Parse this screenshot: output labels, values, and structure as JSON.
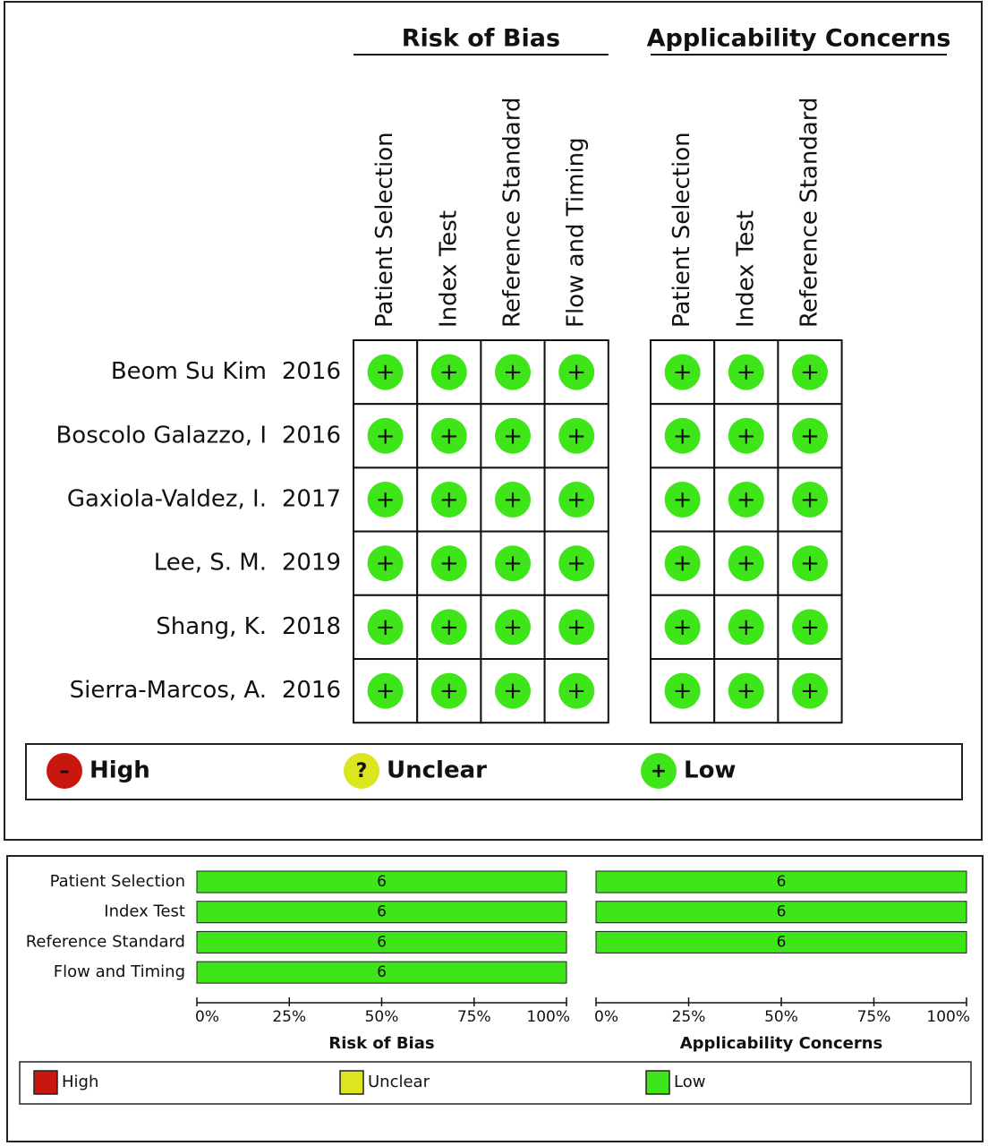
{
  "summary": {
    "groups": [
      {
        "title": "Risk of Bias",
        "domains": [
          "Patient Selection",
          "Index Test",
          "Reference Standard",
          "Flow and Timing"
        ]
      },
      {
        "title": "Applicability Concerns",
        "domains": [
          "Patient Selection",
          "Index Test",
          "Reference Standard"
        ]
      }
    ],
    "studies": [
      {
        "author": "Beom Su Kim",
        "year": "2016",
        "ratings": [
          [
            "+",
            "+",
            "+",
            "+"
          ],
          [
            "+",
            "+",
            "+"
          ]
        ]
      },
      {
        "author": "Boscolo Galazzo, I",
        "year": "2016",
        "ratings": [
          [
            "+",
            "+",
            "+",
            "+"
          ],
          [
            "+",
            "+",
            "+"
          ]
        ]
      },
      {
        "author": "Gaxiola-Valdez, I.",
        "year": "2017",
        "ratings": [
          [
            "+",
            "+",
            "+",
            "+"
          ],
          [
            "+",
            "+",
            "+"
          ]
        ]
      },
      {
        "author": "Lee, S. M.",
        "year": "2019",
        "ratings": [
          [
            "+",
            "+",
            "+",
            "+"
          ],
          [
            "+",
            "+",
            "+"
          ]
        ]
      },
      {
        "author": "Shang, K.",
        "year": "2018",
        "ratings": [
          [
            "+",
            "+",
            "+",
            "+"
          ],
          [
            "+",
            "+",
            "+"
          ]
        ]
      },
      {
        "author": "Sierra-Marcos, A.",
        "year": "2016",
        "ratings": [
          [
            "+",
            "+",
            "+",
            "+"
          ],
          [
            "+",
            "+",
            "+"
          ]
        ]
      }
    ],
    "legend": [
      {
        "symbol": "–",
        "label": "High",
        "color": "#c8170f"
      },
      {
        "symbol": "?",
        "label": "Unclear",
        "color": "#dce61e"
      },
      {
        "symbol": "+",
        "label": "Low",
        "color": "#3ee619"
      }
    ]
  },
  "chart_data": [
    {
      "type": "bar",
      "orientation": "horizontal",
      "stacked": true,
      "xlabel": "Risk of Bias",
      "categories": [
        "Patient Selection",
        "Index Test",
        "Reference Standard",
        "Flow and Timing"
      ],
      "series": [
        {
          "name": "High",
          "color": "#c8170f",
          "values": [
            0,
            0,
            0,
            0
          ]
        },
        {
          "name": "Unclear",
          "color": "#dce61e",
          "values": [
            0,
            0,
            0,
            0
          ]
        },
        {
          "name": "Low",
          "color": "#3ee619",
          "values": [
            100,
            100,
            100,
            100
          ],
          "counts": [
            6,
            6,
            6,
            6
          ]
        }
      ],
      "xlim": [
        0,
        100
      ],
      "xticks": [
        {
          "value": 0,
          "label": "0%"
        },
        {
          "value": 25,
          "label": "25%"
        },
        {
          "value": 50,
          "label": "50%"
        },
        {
          "value": 75,
          "label": "75%"
        },
        {
          "value": 100,
          "label": "100%"
        }
      ]
    },
    {
      "type": "bar",
      "orientation": "horizontal",
      "stacked": true,
      "xlabel": "Applicability Concerns",
      "categories": [
        "Patient Selection",
        "Index Test",
        "Reference Standard"
      ],
      "series": [
        {
          "name": "High",
          "color": "#c8170f",
          "values": [
            0,
            0,
            0
          ]
        },
        {
          "name": "Unclear",
          "color": "#dce61e",
          "values": [
            0,
            0,
            0
          ]
        },
        {
          "name": "Low",
          "color": "#3ee619",
          "values": [
            100,
            100,
            100
          ],
          "counts": [
            6,
            6,
            6
          ]
        }
      ],
      "xlim": [
        0,
        100
      ],
      "xticks": [
        {
          "value": 0,
          "label": "0%"
        },
        {
          "value": 25,
          "label": "25%"
        },
        {
          "value": 50,
          "label": "50%"
        },
        {
          "value": 75,
          "label": "75%"
        },
        {
          "value": 100,
          "label": "100%"
        }
      ]
    }
  ]
}
